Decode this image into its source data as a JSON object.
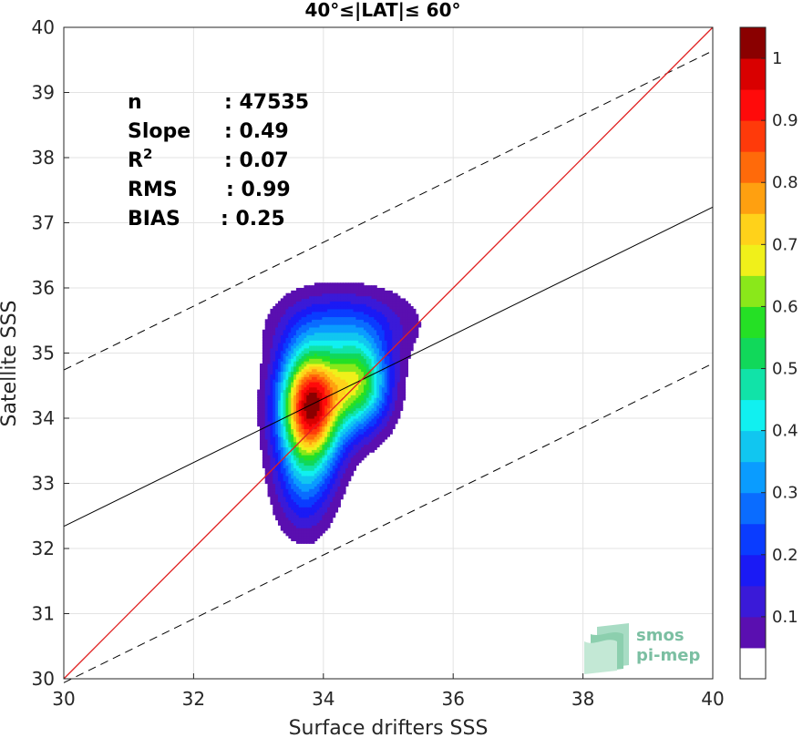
{
  "chart_data": {
    "type": "contour-density",
    "title": "40°≤|LAT|≤ 60°",
    "xlabel": "Surface drifters SSS",
    "ylabel": "Satellite SSS",
    "xlim": [
      30,
      40
    ],
    "ylim": [
      30,
      40
    ],
    "xticks": [
      "30",
      "32",
      "34",
      "36",
      "38",
      "40"
    ],
    "yticks": [
      "30",
      "31",
      "32",
      "33",
      "34",
      "35",
      "36",
      "37",
      "38",
      "39",
      "40"
    ],
    "grid": true,
    "stats": [
      {
        "label": "n",
        "value": ": 47535"
      },
      {
        "label": "Slope",
        "value": ": 0.49"
      },
      {
        "label": "R",
        "sup": "2",
        "value": ": 0.07"
      },
      {
        "label": "RMS",
        "value": ": 0.99"
      },
      {
        "label": "BIAS",
        "value": ": 0.25"
      }
    ],
    "identity_line": {
      "color": "#e02020",
      "x": [
        30,
        40
      ],
      "y": [
        30,
        40
      ]
    },
    "fit_line": {
      "color": "#000000",
      "x": [
        30,
        40
      ],
      "y": [
        32.34,
        37.24
      ]
    },
    "bound_lines": [
      {
        "style": "dashed",
        "x": [
          30,
          40
        ],
        "y": [
          34.74,
          39.64
        ]
      },
      {
        "style": "dashed",
        "x": [
          30,
          40
        ],
        "y": [
          29.94,
          34.84
        ]
      }
    ],
    "contour_peaks": [
      {
        "x": 33.8,
        "y": 34.2,
        "sx": 0.33,
        "sy": 0.62,
        "amp": 1.0
      },
      {
        "x": 34.55,
        "y": 34.55,
        "sx": 0.32,
        "sy": 0.48,
        "amp": 0.58
      },
      {
        "x": 34.35,
        "y": 35.45,
        "sx": 0.7,
        "sy": 0.38,
        "amp": 0.18
      },
      {
        "x": 33.7,
        "y": 33.0,
        "sx": 0.3,
        "sy": 0.55,
        "amp": 0.2
      }
    ],
    "colorbar": {
      "ticks": [
        "0.1",
        "0.2",
        "0.3",
        "0.4",
        "0.5",
        "0.6",
        "0.7",
        "0.8",
        "0.9",
        "1"
      ],
      "levels": [
        0.05,
        0.1,
        0.15,
        0.2,
        0.25,
        0.3,
        0.35,
        0.4,
        0.45,
        0.5,
        0.55,
        0.6,
        0.65,
        0.7,
        0.75,
        0.8,
        0.85,
        0.9,
        0.95,
        1.0
      ],
      "colors": [
        "#ffffff",
        "#5a0fb0",
        "#3a1ad8",
        "#1a1af5",
        "#0a3cff",
        "#0a6cff",
        "#0a9cff",
        "#11c6f0",
        "#11f0f0",
        "#11e3a8",
        "#11d85a",
        "#25e025",
        "#8ae81a",
        "#f0f01a",
        "#ffd21a",
        "#ffa010",
        "#ff6a0a",
        "#ff3a0a",
        "#ff0a0a",
        "#d90000",
        "#8a0000"
      ]
    }
  },
  "watermark": {
    "line1": "smos",
    "line2": "pi-mep"
  }
}
